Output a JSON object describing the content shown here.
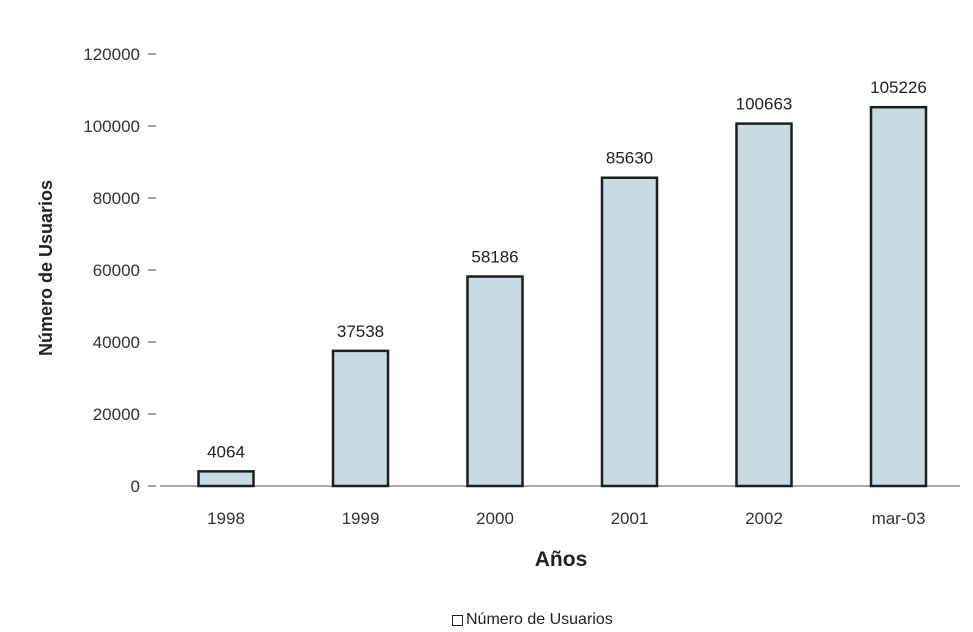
{
  "chart_data": {
    "type": "bar",
    "categories": [
      "1998",
      "1999",
      "2000",
      "2001",
      "2002",
      "mar-03"
    ],
    "values": [
      4064,
      37538,
      58186,
      85630,
      100663,
      105226
    ],
    "data_labels": [
      "4064",
      "37538",
      "58186",
      "85630",
      "100663",
      "105226"
    ],
    "xlabel": "Años",
    "ylabel": "Número de Usuarios",
    "ylim": [
      0,
      120000
    ],
    "yticks": [
      0,
      20000,
      40000,
      60000,
      80000,
      100000,
      120000
    ],
    "ytick_labels": [
      "0",
      "20000",
      "40000",
      "60000",
      "80000",
      "100000",
      "120000"
    ],
    "legend": {
      "label": "Número de Usuarios",
      "position": "bottom"
    },
    "grid": false,
    "colors": {
      "bar_fill": "#c9dbe2",
      "bar_stroke": "#1e1e1e",
      "axis": "#555555"
    }
  }
}
